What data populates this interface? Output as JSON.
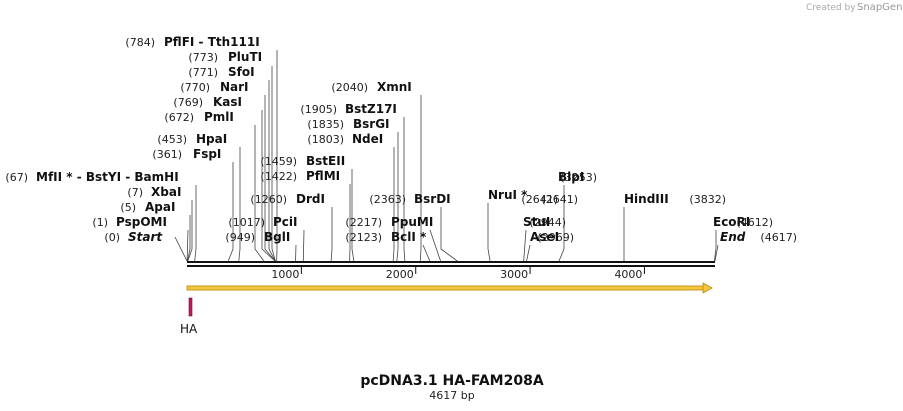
{
  "branding": {
    "created_by": "Created by",
    "product": "SnapGene"
  },
  "map": {
    "title": "pcDNA3.1 HA-FAM208A",
    "subtitle": "4617 bp",
    "length_bp": 4617,
    "ticks": [
      {
        "label": "1000",
        "bp": 1000
      },
      {
        "label": "2000",
        "bp": 2000
      },
      {
        "label": "3000",
        "bp": 3000
      },
      {
        "label": "4000",
        "bp": 4000
      }
    ],
    "sites": [
      {
        "id": "pflfi",
        "num": "(784)",
        "name": "PflFI  - Tth111I",
        "bp": 784
      },
      {
        "id": "plutI",
        "num": "(773)",
        "name": "PluTI",
        "bp": 773
      },
      {
        "id": "sfoI",
        "num": "(771)",
        "name": "SfoI",
        "bp": 771
      },
      {
        "id": "narI",
        "num": "(770)",
        "name": "NarI",
        "bp": 770
      },
      {
        "id": "kasI",
        "num": "(769)",
        "name": "KasI",
        "bp": 769
      },
      {
        "id": "pmlI",
        "num": "(672)",
        "name": "PmlI",
        "bp": 672
      },
      {
        "id": "hpaI",
        "num": "(453)",
        "name": "HpaI",
        "bp": 453
      },
      {
        "id": "fspI",
        "num": "(361)",
        "name": "FspI",
        "bp": 361
      },
      {
        "id": "mfeI",
        "num": "(67)",
        "name": "MfII * - BstYI  - BamHI",
        "bp": 67
      },
      {
        "id": "xbaI",
        "num": "(7)",
        "name": "XbaI",
        "bp": 7
      },
      {
        "id": "apaI",
        "num": "(5)",
        "name": "ApaI",
        "bp": 5
      },
      {
        "id": "pspomI",
        "num": "(1)",
        "name": "PspOMI",
        "bp": 1
      },
      {
        "id": "xmnI",
        "num": "(2040)",
        "name": "XmnI",
        "bp": 2040
      },
      {
        "id": "bstz17I",
        "num": "(1905)",
        "name": "BstZ17I",
        "bp": 1905
      },
      {
        "id": "bsrgI",
        "num": "(1835)",
        "name": "BsrGI",
        "bp": 1835
      },
      {
        "id": "ndeI",
        "num": "(1803)",
        "name": "NdeI",
        "bp": 1803
      },
      {
        "id": "bsteII",
        "num": "(1459)",
        "name": "BstEII",
        "bp": 1459
      },
      {
        "id": "pflmI",
        "num": "(1422)",
        "name": "PflMI",
        "bp": 1422
      },
      {
        "id": "drdI",
        "num": "(1260)",
        "name": "DrdI",
        "bp": 1260
      },
      {
        "id": "bsrdI",
        "num": "(2363)",
        "name": "BsrDI",
        "bp": 2363
      },
      {
        "id": "pciI",
        "num": "(1017)",
        "name": "PciI",
        "bp": 1017
      },
      {
        "id": "bglI",
        "num": "(949)",
        "name": "BglI",
        "bp": 949
      },
      {
        "id": "ppumI",
        "num": "(2217)",
        "name": "PpuMI",
        "bp": 2217
      },
      {
        "id": "bclI",
        "num": "(2123)",
        "name": "BclI *",
        "bp": 2123
      },
      {
        "id": "nruI",
        "num": "",
        "name": "NruI *",
        "bp": 2650
      },
      {
        "id": "blpI",
        "num": "(3253)",
        "name": "BlpI",
        "bp": 3253
      },
      {
        "id": "stuI",
        "num": "(2641)",
        "name": "StuI",
        "bp": 2641
      },
      {
        "id": "stuI2",
        "num": "(2944)",
        "name": "",
        "bp": 2944
      },
      {
        "id": "aseI",
        "num": "(2969)",
        "name": "AseI",
        "bp": 2969
      },
      {
        "id": "hindIII",
        "num": "(3832)",
        "name": "HindIII",
        "bp": 3832
      },
      {
        "id": "ecoRI",
        "num": "(4612)",
        "name": "EcoRI",
        "bp": 4612
      }
    ],
    "start": {
      "num": "(0)",
      "name": "Start"
    },
    "end": {
      "num": "(4617)",
      "name": "End"
    },
    "features": [
      {
        "name": "HA",
        "color": "#c2185b"
      }
    ],
    "orf_color": "#f5c542"
  }
}
